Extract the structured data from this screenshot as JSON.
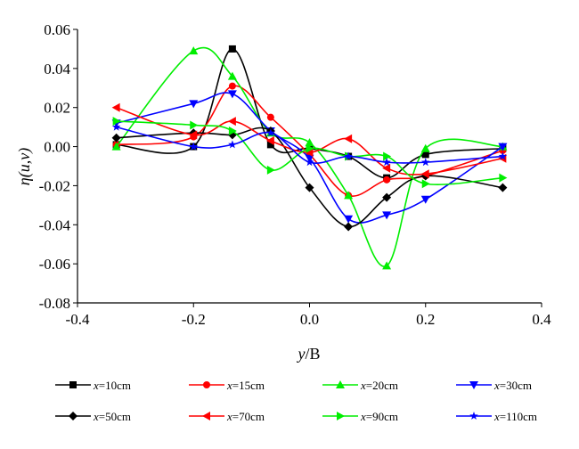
{
  "chart_data": {
    "type": "line",
    "xlabel": "y/B",
    "ylabel": "η(u,v)",
    "xlim": [
      -0.4,
      0.4
    ],
    "ylim": [
      -0.08,
      0.06
    ],
    "xticks": [
      "-0.4",
      "-0.2",
      "0.0",
      "0.2",
      "0.4"
    ],
    "yticks": [
      "0.06",
      "0.04",
      "0.02",
      "0.00",
      "-0.02",
      "-0.04",
      "-0.06",
      "-0.08"
    ],
    "grid": false,
    "legend_placement": "bottom",
    "x": [
      -0.333,
      -0.2,
      -0.133,
      -0.067,
      0.0,
      0.067,
      0.133,
      0.2,
      0.333
    ],
    "series": [
      {
        "name": "x=10cm",
        "color": "#000000",
        "marker": "square",
        "values": [
          0.001,
          0.0,
          0.05,
          0.001,
          -0.001,
          -0.005,
          -0.016,
          -0.004,
          -0.001
        ]
      },
      {
        "name": "x=15cm",
        "color": "#ff0000",
        "marker": "circle",
        "values": [
          0.001,
          0.005,
          0.031,
          0.015,
          -0.004,
          -0.025,
          -0.017,
          -0.015,
          -0.002
        ]
      },
      {
        "name": "x=20cm",
        "color": "#00ee00",
        "marker": "triangle-up",
        "values": [
          0.0,
          0.049,
          0.036,
          0.007,
          0.002,
          -0.025,
          -0.061,
          -0.001,
          0.0
        ]
      },
      {
        "name": "x=30cm",
        "color": "#0000ff",
        "marker": "triangle-down",
        "values": [
          0.012,
          0.022,
          0.027,
          0.008,
          -0.006,
          -0.037,
          -0.035,
          -0.027,
          0.0
        ]
      },
      {
        "name": "x=50cm",
        "color": "#000000",
        "marker": "diamond",
        "values": [
          0.0045,
          0.007,
          0.006,
          0.008,
          -0.021,
          -0.041,
          -0.026,
          -0.015,
          -0.021
        ]
      },
      {
        "name": "x=70cm",
        "color": "#ff0000",
        "marker": "triangle-left",
        "values": [
          0.02,
          0.006,
          0.013,
          0.003,
          -0.003,
          0.004,
          -0.011,
          -0.014,
          -0.006
        ]
      },
      {
        "name": "x=90cm",
        "color": "#00ee00",
        "marker": "triangle-right",
        "values": [
          0.013,
          0.011,
          0.008,
          -0.012,
          -0.001,
          -0.005,
          -0.005,
          -0.019,
          -0.016
        ]
      },
      {
        "name": "x=110cm",
        "color": "#0000ff",
        "marker": "star",
        "values": [
          0.01,
          0.0,
          0.001,
          0.007,
          -0.008,
          -0.005,
          -0.008,
          -0.008,
          -0.005
        ]
      }
    ]
  }
}
